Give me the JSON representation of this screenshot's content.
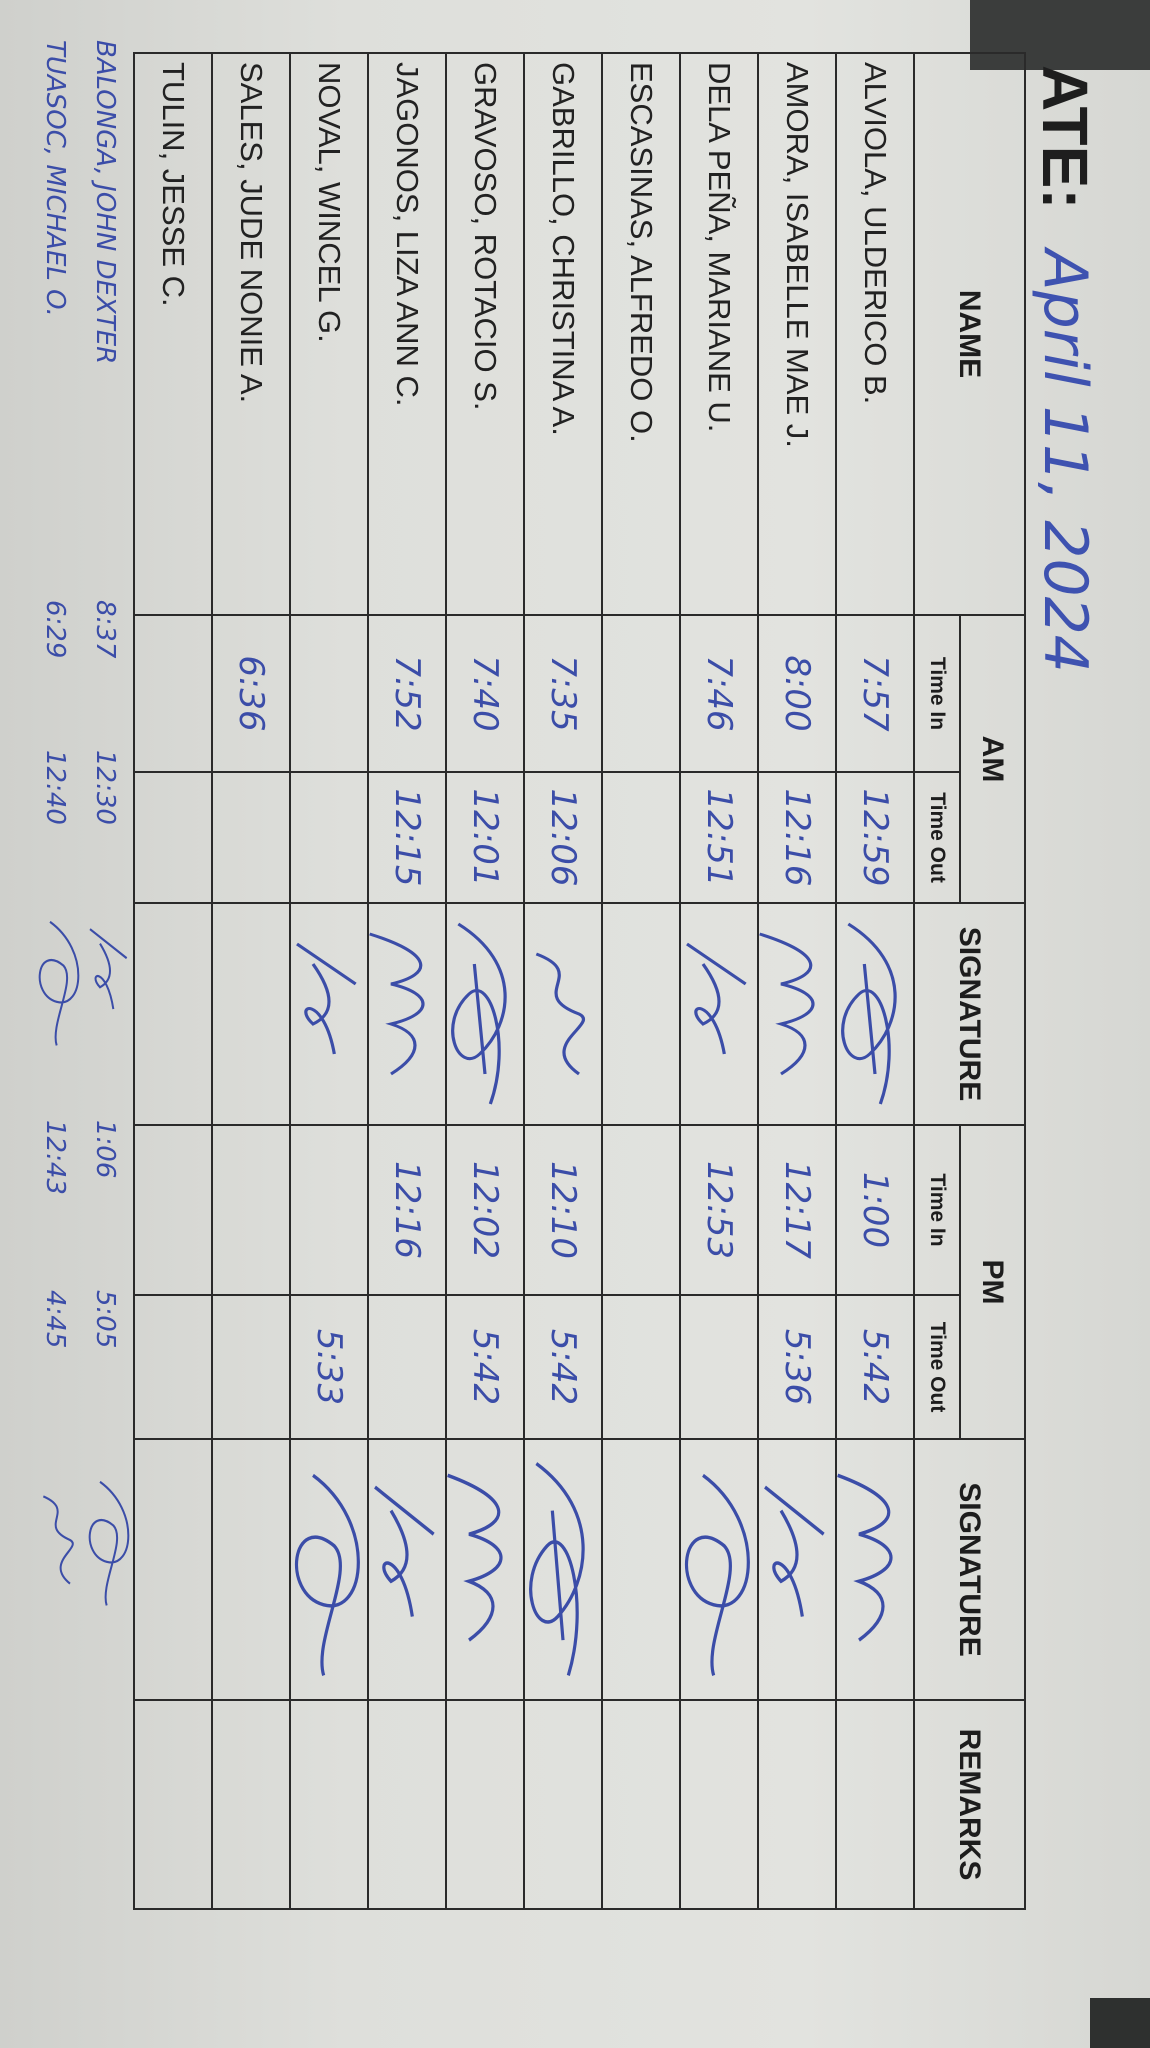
{
  "document": {
    "date_label": "ATE:",
    "date_value": "April 11, 2024",
    "ink_color": "#3b4da8"
  },
  "table": {
    "headers": {
      "name": "NAME",
      "am": "AM",
      "signature_am": "SIGNATURE",
      "pm": "PM",
      "signature_pm": "SIGNATURE",
      "remarks": "REMARKS",
      "time_in": "Time In",
      "time_out": "Time Out"
    },
    "rows": [
      {
        "name": "ALVIOLA, ULDERICO B.",
        "am_in": "7:57",
        "am_out": "12:59",
        "am_signed": true,
        "pm_in": "1:00",
        "pm_out": "5:42",
        "pm_signed": true,
        "remarks": ""
      },
      {
        "name": "AMORA, ISABELLE MAE J.",
        "am_in": "8:00",
        "am_out": "12:16",
        "am_signed": true,
        "pm_in": "12:17",
        "pm_out": "5:36",
        "pm_signed": true,
        "remarks": ""
      },
      {
        "name": "DELA PEÑA, MARIANE U.",
        "am_in": "7:46",
        "am_out": "12:51",
        "am_signed": true,
        "pm_in": "12:53",
        "pm_out": "",
        "pm_signed": true,
        "remarks": ""
      },
      {
        "name": "ESCASINAS, ALFREDO O.",
        "am_in": "",
        "am_out": "",
        "am_signed": false,
        "pm_in": "",
        "pm_out": "",
        "pm_signed": false,
        "remarks": ""
      },
      {
        "name": "GABRILLO, CHRISTINA A.",
        "am_in": "7:35",
        "am_out": "12:06",
        "am_signed": true,
        "pm_in": "12:10",
        "pm_out": "5:42",
        "pm_signed": true,
        "remarks": ""
      },
      {
        "name": "GRAVOSO, ROTACIO S.",
        "am_in": "7:40",
        "am_out": "12:01",
        "am_signed": true,
        "pm_in": "12:02",
        "pm_out": "5:42",
        "pm_signed": true,
        "remarks": ""
      },
      {
        "name": "JAGONOS, LIZA ANN C.",
        "am_in": "7:52",
        "am_out": "12:15",
        "am_signed": true,
        "pm_in": "12:16",
        "pm_out": "",
        "pm_signed": true,
        "remarks": ""
      },
      {
        "name": "NOVAL, WINCEL G.",
        "am_in": "",
        "am_out": "",
        "am_signed": true,
        "pm_in": "",
        "pm_out": "5:33",
        "pm_signed": true,
        "remarks": ""
      },
      {
        "name": "SALES, JUDE NONIE A.",
        "am_in": "6:36",
        "am_out": "",
        "am_signed": false,
        "pm_in": "",
        "pm_out": "",
        "pm_signed": false,
        "remarks": ""
      },
      {
        "name": "TULIN, JESSE C.",
        "am_in": "",
        "am_out": "",
        "am_signed": false,
        "pm_in": "",
        "pm_out": "",
        "pm_signed": false,
        "remarks": ""
      }
    ]
  },
  "handwritten_entries": [
    {
      "name": "BALONGA, JOHN DEXTER",
      "am_in": "8:37",
      "am_out": "12:30",
      "pm_in": "1:06",
      "pm_out": "5:05"
    },
    {
      "name": "TUASOC, MICHAEL O.",
      "am_in": "6:29",
      "am_out": "12:40",
      "pm_in": "12:43",
      "pm_out": "4:45"
    }
  ]
}
